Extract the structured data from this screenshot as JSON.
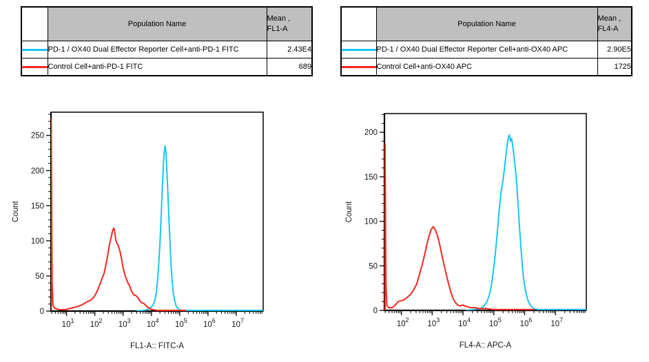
{
  "colors": {
    "reporter_series": "#18C5F4",
    "control_series": "#FA271E",
    "table_header_bg": "#BFBFBF",
    "axis": "#000000",
    "background": "#FFFFFF"
  },
  "tables": [
    {
      "name_header": "Population Name",
      "mean_header_line1": "Mean ,",
      "mean_header_line2": "FL1-A",
      "rows": [
        {
          "swatch_color": "#18C5F4",
          "population": "PD-1 / OX40 Dual Effector Reporter Cell+anti-PD-1 FITC",
          "mean": "2.43E4"
        },
        {
          "swatch_color": "#FA271E",
          "population": "Control Cell+anti-PD-1 FITC",
          "mean": "689"
        }
      ]
    },
    {
      "name_header": "Population Name",
      "mean_header_line1": "Mean ,",
      "mean_header_line2": "FL4-A",
      "rows": [
        {
          "swatch_color": "#18C5F4",
          "population": "PD-1 / OX40 Dual Effector Reporter Cell+anti-OX40 APC",
          "mean": "2.90E5"
        },
        {
          "swatch_color": "#FA271E",
          "population": "Control Cell+anti-OX40 APC",
          "mean": "1725"
        }
      ]
    }
  ],
  "chart_data": [
    {
      "type": "line",
      "title": "",
      "xlabel": "FL1-A:: FITC-A",
      "ylabel": "Count",
      "xscale": "log",
      "xlim_log10": [
        0.45,
        7.95
      ],
      "xticks_exponents": [
        1,
        2,
        3,
        4,
        5,
        6,
        7
      ],
      "ylim": [
        0,
        283
      ],
      "yticks": [
        0,
        50,
        100,
        150,
        200,
        250
      ],
      "y_minor_step": 10,
      "grid": false,
      "legend_position": "none",
      "series": [
        {
          "name": "PD-1 / OX40 Dual Effector Reporter Cell+anti-PD-1 FITC",
          "color": "#18C5F4",
          "peak": {
            "x": 28000,
            "count": 235
          },
          "points_log10x_count": [
            [
              3.5,
              0
            ],
            [
              3.7,
              1
            ],
            [
              3.85,
              2
            ],
            [
              3.95,
              4
            ],
            [
              4.05,
              8
            ],
            [
              4.12,
              15
            ],
            [
              4.18,
              28
            ],
            [
              4.24,
              55
            ],
            [
              4.3,
              95
            ],
            [
              4.34,
              130
            ],
            [
              4.38,
              170
            ],
            [
              4.42,
              205
            ],
            [
              4.45,
              225
            ],
            [
              4.48,
              235
            ],
            [
              4.51,
              228
            ],
            [
              4.54,
              205
            ],
            [
              4.58,
              170
            ],
            [
              4.62,
              130
            ],
            [
              4.66,
              95
            ],
            [
              4.7,
              62
            ],
            [
              4.74,
              40
            ],
            [
              4.78,
              24
            ],
            [
              4.83,
              13
            ],
            [
              4.88,
              7
            ],
            [
              4.95,
              3
            ],
            [
              5.05,
              1
            ],
            [
              5.2,
              1
            ],
            [
              7.93,
              1
            ]
          ]
        },
        {
          "name": "Control Cell+anti-PD-1 FITC",
          "color": "#FA271E",
          "peak": {
            "x": 450,
            "count": 118
          },
          "points_log10x_count": [
            [
              0.46,
              0
            ],
            [
              0.46,
              273
            ],
            [
              0.49,
              42
            ],
            [
              0.52,
              8
            ],
            [
              0.58,
              4
            ],
            [
              0.75,
              2
            ],
            [
              0.95,
              2
            ],
            [
              1.15,
              4
            ],
            [
              1.35,
              6
            ],
            [
              1.55,
              9
            ],
            [
              1.72,
              13
            ],
            [
              1.87,
              16
            ],
            [
              1.97,
              20
            ],
            [
              2.07,
              27
            ],
            [
              2.17,
              37
            ],
            [
              2.27,
              48
            ],
            [
              2.33,
              54
            ],
            [
              2.41,
              70
            ],
            [
              2.47,
              83
            ],
            [
              2.52,
              95
            ],
            [
              2.57,
              104
            ],
            [
              2.61,
              111
            ],
            [
              2.64,
              116
            ],
            [
              2.67,
              118
            ],
            [
              2.71,
              112
            ],
            [
              2.74,
              101
            ],
            [
              2.79,
              96
            ],
            [
              2.84,
              92
            ],
            [
              2.89,
              85
            ],
            [
              2.94,
              75
            ],
            [
              3.0,
              61
            ],
            [
              3.06,
              52
            ],
            [
              3.12,
              45
            ],
            [
              3.17,
              40
            ],
            [
              3.23,
              36
            ],
            [
              3.3,
              28
            ],
            [
              3.38,
              23
            ],
            [
              3.45,
              22
            ],
            [
              3.51,
              20
            ],
            [
              3.58,
              15
            ],
            [
              3.65,
              12
            ],
            [
              3.73,
              11
            ],
            [
              3.8,
              8
            ],
            [
              3.88,
              5
            ],
            [
              3.96,
              3
            ],
            [
              4.06,
              2
            ],
            [
              4.2,
              1
            ],
            [
              4.6,
              1
            ],
            [
              5.0,
              1
            ],
            [
              5.2,
              1
            ]
          ]
        }
      ]
    },
    {
      "type": "line",
      "title": "",
      "xlabel": "FL4-A:: APC-A",
      "ylabel": "Count",
      "xscale": "log",
      "xlim_log10": [
        1.45,
        8.0
      ],
      "xticks_exponents": [
        2,
        3,
        4,
        5,
        6,
        7
      ],
      "ylim": [
        0,
        221
      ],
      "yticks": [
        0,
        50,
        100,
        150,
        200
      ],
      "y_minor_step": 10,
      "grid": false,
      "legend_position": "none",
      "series": [
        {
          "name": "PD-1 / OX40 Dual Effector Reporter Cell+anti-OX40 APC",
          "color": "#18C5F4",
          "peak": {
            "x": 300000,
            "count": 197
          },
          "points_log10x_count": [
            [
              4.1,
              0
            ],
            [
              4.35,
              1
            ],
            [
              4.55,
              2
            ],
            [
              4.68,
              5
            ],
            [
              4.78,
              10
            ],
            [
              4.88,
              20
            ],
            [
              4.95,
              35
            ],
            [
              5.02,
              55
            ],
            [
              5.08,
              75
            ],
            [
              5.13,
              95
            ],
            [
              5.18,
              115
            ],
            [
              5.23,
              132
            ],
            [
              5.27,
              140
            ],
            [
              5.32,
              152
            ],
            [
              5.37,
              168
            ],
            [
              5.42,
              182
            ],
            [
              5.46,
              192
            ],
            [
              5.5,
              197
            ],
            [
              5.54,
              190
            ],
            [
              5.58,
              193
            ],
            [
              5.63,
              180
            ],
            [
              5.68,
              165
            ],
            [
              5.73,
              148
            ],
            [
              5.78,
              122
            ],
            [
              5.83,
              95
            ],
            [
              5.88,
              70
            ],
            [
              5.93,
              48
            ],
            [
              5.98,
              32
            ],
            [
              6.05,
              18
            ],
            [
              6.12,
              10
            ],
            [
              6.2,
              5
            ],
            [
              6.3,
              2
            ],
            [
              6.42,
              1
            ],
            [
              7.98,
              1
            ]
          ]
        },
        {
          "name": "Control Cell+anti-OX40 APC",
          "color": "#FA271E",
          "peak": {
            "x": 1100,
            "count": 94
          },
          "points_log10x_count": [
            [
              1.47,
              0
            ],
            [
              1.47,
              187
            ],
            [
              1.5,
              30
            ],
            [
              1.53,
              5
            ],
            [
              1.6,
              3
            ],
            [
              1.7,
              3
            ],
            [
              1.8,
              6
            ],
            [
              1.9,
              10
            ],
            [
              2.0,
              11
            ],
            [
              2.1,
              12
            ],
            [
              2.2,
              15
            ],
            [
              2.3,
              18
            ],
            [
              2.4,
              23
            ],
            [
              2.5,
              30
            ],
            [
              2.6,
              42
            ],
            [
              2.68,
              52
            ],
            [
              2.75,
              62
            ],
            [
              2.82,
              73
            ],
            [
              2.9,
              84
            ],
            [
              2.97,
              91
            ],
            [
              3.03,
              94
            ],
            [
              3.09,
              91
            ],
            [
              3.16,
              85
            ],
            [
              3.23,
              76
            ],
            [
              3.3,
              64
            ],
            [
              3.38,
              52
            ],
            [
              3.46,
              40
            ],
            [
              3.53,
              30
            ],
            [
              3.6,
              21
            ],
            [
              3.68,
              13
            ],
            [
              3.75,
              9
            ],
            [
              3.83,
              6
            ],
            [
              3.9,
              5
            ],
            [
              3.98,
              6
            ],
            [
              4.06,
              5
            ],
            [
              4.15,
              4
            ],
            [
              4.25,
              3
            ],
            [
              4.4,
              3
            ],
            [
              4.55,
              2
            ],
            [
              4.75,
              2
            ],
            [
              5.0,
              1
            ],
            [
              5.5,
              1
            ],
            [
              6.0,
              1
            ],
            [
              6.3,
              1
            ]
          ]
        }
      ]
    }
  ]
}
